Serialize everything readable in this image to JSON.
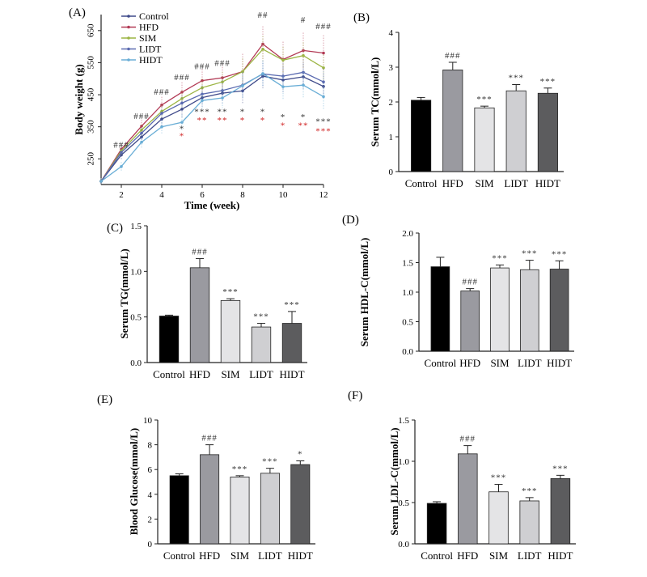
{
  "chart_data": [
    {
      "id": "A",
      "panel_label": "(A)",
      "type": "line",
      "xlabel": "Time (week)",
      "ylabel": "Body weight (g)",
      "xlim": [
        1,
        12
      ],
      "ylim": [
        170,
        700
      ],
      "xticks": [
        2,
        4,
        6,
        8,
        10,
        12
      ],
      "yticks": [
        250,
        350,
        450,
        550,
        650
      ],
      "legend_position": "top-left",
      "x": [
        1,
        2,
        3,
        4,
        5,
        6,
        7,
        8,
        9,
        10,
        11,
        12
      ],
      "series": [
        {
          "name": "Control",
          "color": "#3f4a8a",
          "values": [
            180,
            262,
            318,
            374,
            405,
            441,
            455,
            462,
            508,
            496,
            506,
            476
          ]
        },
        {
          "name": "HFD",
          "color": "#b23a55",
          "values": [
            180,
            280,
            352,
            418,
            458,
            494,
            503,
            522,
            608,
            560,
            588,
            580
          ]
        },
        {
          "name": "SIM",
          "color": "#9cb544",
          "values": [
            180,
            275,
            340,
            398,
            438,
            472,
            490,
            522,
            592,
            558,
            572,
            534
          ]
        },
        {
          "name": "LIDT",
          "color": "#5a6ab0",
          "values": [
            180,
            270,
            330,
            392,
            424,
            452,
            463,
            480,
            515,
            508,
            520,
            490
          ]
        },
        {
          "name": "HIDT",
          "color": "#6aaed6",
          "values": [
            180,
            226,
            302,
            350,
            364,
            432,
            440,
            478,
            516,
            475,
            480,
            444
          ]
        }
      ],
      "annotations": [
        {
          "x": 2,
          "y_anchor": 285,
          "text": "###",
          "color": "#333333"
        },
        {
          "x": 3,
          "y_anchor": 375,
          "text": "###",
          "color": "#333333"
        },
        {
          "x": 4,
          "y_anchor": 450,
          "text": "###",
          "color": "#333333"
        },
        {
          "x": 5,
          "y_anchor": 495,
          "text": "###",
          "color": "#333333"
        },
        {
          "x": 6,
          "y_anchor": 530,
          "text": "###",
          "color": "#333333"
        },
        {
          "x": 7,
          "y_anchor": 540,
          "text": "###",
          "color": "#333333"
        },
        {
          "x": 9,
          "y_anchor": 690,
          "text": "##",
          "color": "#333333"
        },
        {
          "x": 11,
          "y_anchor": 675,
          "text": "#",
          "color": "#333333"
        },
        {
          "x": 12,
          "y_anchor": 655,
          "text": "###",
          "color": "#333333"
        },
        {
          "x": 5,
          "y_anchor": 335,
          "text": "*",
          "color": "#333333"
        },
        {
          "x": 6,
          "y_anchor": 388,
          "text": "***",
          "color": "#333333"
        },
        {
          "x": 7,
          "y_anchor": 388,
          "text": "**",
          "color": "#333333"
        },
        {
          "x": 8,
          "y_anchor": 388,
          "text": "*",
          "color": "#333333"
        },
        {
          "x": 9,
          "y_anchor": 388,
          "text": "*",
          "color": "#333333"
        },
        {
          "x": 10,
          "y_anchor": 372,
          "text": "*",
          "color": "#333333"
        },
        {
          "x": 11,
          "y_anchor": 372,
          "text": "*",
          "color": "#333333"
        },
        {
          "x": 12,
          "y_anchor": 358,
          "text": "***",
          "color": "#333333"
        },
        {
          "x": 5,
          "y_anchor": 312,
          "text": "*",
          "color": "#d02020"
        },
        {
          "x": 6,
          "y_anchor": 362,
          "text": "**",
          "color": "#d02020"
        },
        {
          "x": 7,
          "y_anchor": 362,
          "text": "**",
          "color": "#d02020"
        },
        {
          "x": 8,
          "y_anchor": 362,
          "text": "*",
          "color": "#d02020"
        },
        {
          "x": 9,
          "y_anchor": 362,
          "text": "*",
          "color": "#d02020"
        },
        {
          "x": 10,
          "y_anchor": 345,
          "text": "*",
          "color": "#d02020"
        },
        {
          "x": 11,
          "y_anchor": 345,
          "text": "**",
          "color": "#d02020"
        },
        {
          "x": 12,
          "y_anchor": 328,
          "text": "***",
          "color": "#d02020"
        }
      ]
    },
    {
      "id": "B",
      "panel_label": "(B)",
      "type": "bar",
      "ylabel": "Serum TC(mmol/L)",
      "ylim": [
        0,
        4
      ],
      "yticks": [
        0,
        1,
        2,
        3,
        4
      ],
      "categories": [
        "Control",
        "HFD",
        "SIM",
        "LIDT",
        "HIDT"
      ],
      "values": [
        2.05,
        2.92,
        1.83,
        2.32,
        2.25
      ],
      "errors": [
        0.08,
        0.22,
        0.05,
        0.18,
        0.15
      ],
      "marks": [
        "",
        "###",
        "***",
        "***",
        "***"
      ]
    },
    {
      "id": "C",
      "panel_label": "(C)",
      "type": "bar",
      "ylabel": "Serum TG(mmol/L)",
      "ylim": [
        0,
        1.5
      ],
      "yticks": [
        0.0,
        0.5,
        1.0,
        1.5
      ],
      "categories": [
        "Control",
        "HFD",
        "SIM",
        "LIDT",
        "HIDT"
      ],
      "values": [
        0.51,
        1.04,
        0.68,
        0.39,
        0.43
      ],
      "errors": [
        0.01,
        0.1,
        0.02,
        0.04,
        0.13
      ],
      "marks": [
        "",
        "###",
        "***",
        "***",
        "***"
      ]
    },
    {
      "id": "D",
      "panel_label": "(D)",
      "type": "bar",
      "ylabel": "Serum HDL-C(mmol/L)",
      "ylim": [
        0,
        2.0
      ],
      "yticks": [
        0.0,
        0.5,
        1.0,
        1.5,
        2.0
      ],
      "categories": [
        "Control",
        "HFD",
        "SIM",
        "LIDT",
        "HIDT"
      ],
      "values": [
        1.43,
        1.02,
        1.41,
        1.38,
        1.39
      ],
      "errors": [
        0.16,
        0.04,
        0.05,
        0.16,
        0.14
      ],
      "marks": [
        "",
        "###",
        "***",
        "***",
        "***"
      ]
    },
    {
      "id": "E",
      "panel_label": "(E)",
      "type": "bar",
      "ylabel": "Blood Glucose(mmol/L)",
      "ylim": [
        0,
        10
      ],
      "yticks": [
        0,
        2,
        4,
        6,
        8,
        10
      ],
      "categories": [
        "Control",
        "HFD",
        "SIM",
        "LIDT",
        "HIDT"
      ],
      "values": [
        5.5,
        7.2,
        5.4,
        5.7,
        6.4
      ],
      "errors": [
        0.15,
        0.8,
        0.1,
        0.4,
        0.3
      ],
      "marks": [
        "",
        "###",
        "***",
        "***",
        "*"
      ]
    },
    {
      "id": "F",
      "panel_label": "(F)",
      "type": "bar",
      "ylabel": "Serum LDL-C(mmol/L)",
      "ylim": [
        0,
        1.5
      ],
      "yticks": [
        0.0,
        0.5,
        1.0,
        1.5
      ],
      "categories": [
        "Control",
        "HFD",
        "SIM",
        "LIDT",
        "HIDT"
      ],
      "values": [
        0.49,
        1.09,
        0.63,
        0.52,
        0.79
      ],
      "errors": [
        0.02,
        0.1,
        0.09,
        0.04,
        0.04
      ],
      "marks": [
        "",
        "###",
        "***",
        "***",
        "***"
      ]
    }
  ],
  "bar_colors": [
    "#000000",
    "#9a9aa0",
    "#e4e4e6",
    "#cfcfd2",
    "#5c5c5e"
  ]
}
